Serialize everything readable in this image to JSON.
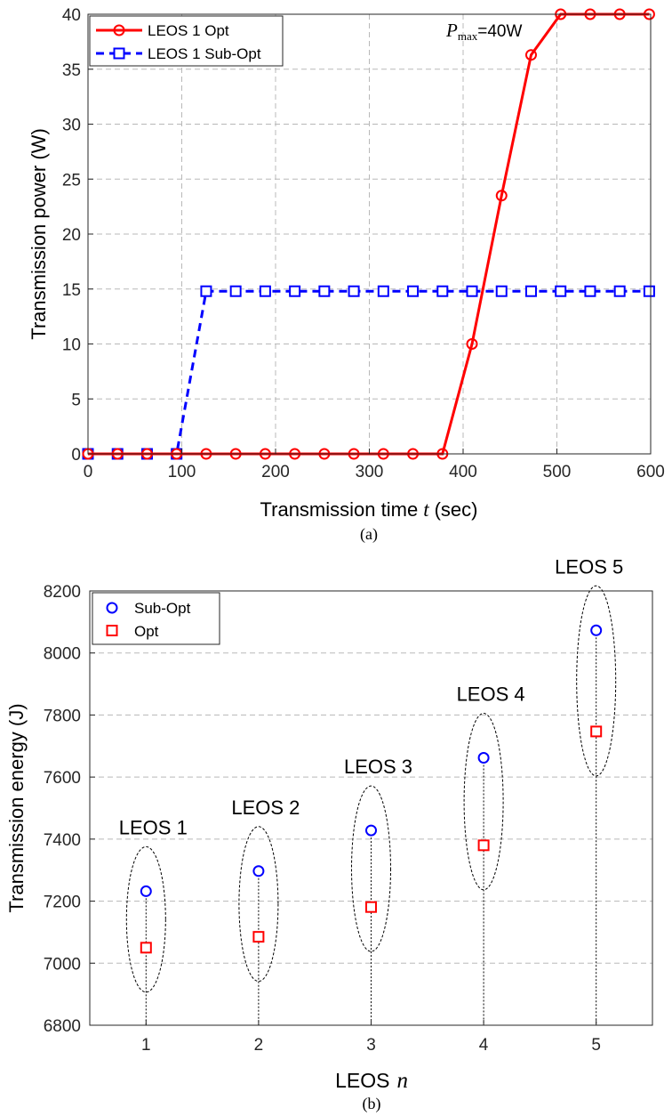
{
  "chart_data": [
    {
      "type": "line",
      "xlabel": "Transmission time",
      "xlabel_var": "t",
      "xlabel_unit": "(sec)",
      "ylabel": "Transmission power (W)",
      "xlim": [
        0,
        600
      ],
      "ylim": [
        0,
        40
      ],
      "xticks": [
        "0",
        "100",
        "200",
        "300",
        "400",
        "500",
        "600"
      ],
      "yticks": [
        "0",
        "5",
        "10",
        "15",
        "20",
        "25",
        "30",
        "35",
        "40"
      ],
      "grid": true,
      "legend": "top-left",
      "caption": "(a)",
      "annotation": {
        "var": "P",
        "sub": "max",
        "text": "=40W"
      },
      "colors": {
        "opt": "#ff0000",
        "subopt": "#0000ff"
      },
      "series": [
        {
          "name": "LEOS 1 Opt",
          "x": [
            0,
            31.5,
            63,
            94.5,
            126,
            157.5,
            189,
            220.5,
            252,
            283.5,
            315,
            346.5,
            378,
            409.5,
            441,
            472.5,
            504,
            535.5,
            567,
            598.5
          ],
          "y": [
            0,
            0,
            0,
            0,
            0,
            0,
            0,
            0,
            0,
            0,
            0,
            0,
            0,
            10,
            23.5,
            36.3,
            40,
            40,
            40,
            40
          ]
        },
        {
          "name": "LEOS 1 Sub-Opt",
          "x": [
            0,
            31.5,
            63,
            94.5,
            126,
            157.5,
            189,
            220.5,
            252,
            283.5,
            315,
            346.5,
            378,
            409.5,
            441,
            472.5,
            504,
            535.5,
            567,
            598.5
          ],
          "y": [
            0,
            0,
            0,
            0,
            14.8,
            14.8,
            14.8,
            14.8,
            14.8,
            14.8,
            14.8,
            14.8,
            14.8,
            14.8,
            14.8,
            14.8,
            14.8,
            14.8,
            14.8,
            14.8
          ]
        }
      ]
    },
    {
      "type": "scatter",
      "xlabel": "LEOS",
      "xlabel_var": "n",
      "ylabel": "Transmission energy (J)",
      "xlim": [
        0.5,
        5.5
      ],
      "ylim": [
        6800,
        8200
      ],
      "xticks": [
        "1",
        "2",
        "3",
        "4",
        "5"
      ],
      "yticks": [
        "6800",
        "7000",
        "7200",
        "7400",
        "7600",
        "7800",
        "8000",
        "8200"
      ],
      "grid": true,
      "legend": "top-left",
      "caption": "(b)",
      "categories": [
        1,
        2,
        3,
        4,
        5
      ],
      "group_labels": [
        "LEOS 1",
        "LEOS 2",
        "LEOS 3",
        "LEOS 4",
        "LEOS 5"
      ],
      "colors": {
        "subopt": "#0000ff",
        "opt": "#ff0000"
      },
      "series": [
        {
          "name": "Sub-Opt",
          "values": [
            7232,
            7297,
            7428,
            7662,
            8073
          ]
        },
        {
          "name": "Opt",
          "values": [
            7050,
            7085,
            7181,
            7380,
            7747
          ]
        }
      ]
    }
  ]
}
